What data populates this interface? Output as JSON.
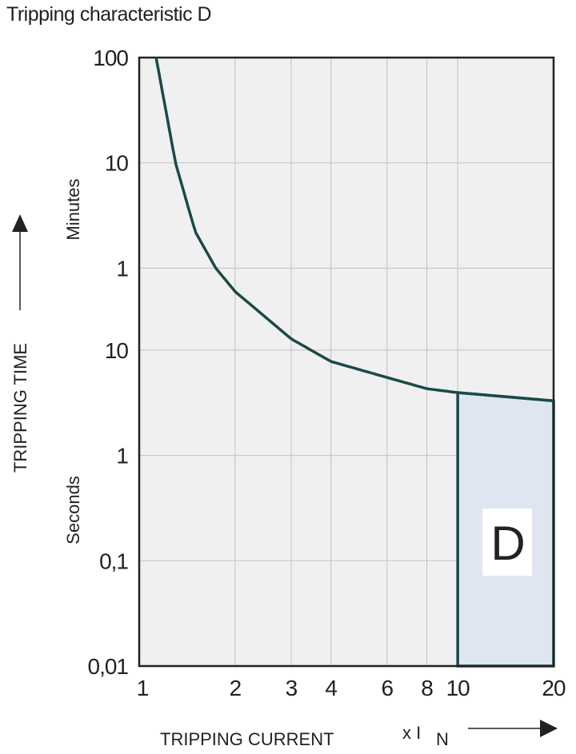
{
  "chart_data": {
    "type": "line",
    "title": "Tripping characteristic D",
    "xlabel": "TRIPPING CURRENT",
    "xunit": "x I",
    "xunit_sub": "N",
    "ylabel": "TRIPPING TIME",
    "x_scale": "log",
    "y_scale": "log",
    "xlim": [
      1,
      20
    ],
    "ylim_seconds": [
      0.01,
      6000
    ],
    "grid": true,
    "x_ticks": [
      {
        "value": 1,
        "label": "1"
      },
      {
        "value": 2,
        "label": "2"
      },
      {
        "value": 3,
        "label": "3"
      },
      {
        "value": 4,
        "label": "4"
      },
      {
        "value": 6,
        "label": "6"
      },
      {
        "value": 8,
        "label": "8"
      },
      {
        "value": 10,
        "label": "10"
      },
      {
        "value": 20,
        "label": "20"
      }
    ],
    "y_ticks": [
      {
        "seconds": 6000,
        "label": "100",
        "unit": "min"
      },
      {
        "seconds": 600,
        "label": "10",
        "unit": "min"
      },
      {
        "seconds": 60,
        "label": "1",
        "unit": "min"
      },
      {
        "seconds": 10,
        "label": "10",
        "unit": "s"
      },
      {
        "seconds": 1,
        "label": "1",
        "unit": "s"
      },
      {
        "seconds": 0.1,
        "label": "0,1",
        "unit": "s"
      },
      {
        "seconds": 0.01,
        "label": "0,01",
        "unit": "s"
      }
    ],
    "y_unit_labels": {
      "minutes": "Minutes",
      "seconds": "Seconds"
    },
    "curve": {
      "x": [
        1.13,
        1.3,
        1.5,
        1.74,
        2,
        3,
        4,
        6,
        8,
        10,
        20
      ],
      "seconds": [
        6000,
        600,
        133,
        60,
        36,
        12.8,
        7.8,
        5.5,
        4.3,
        3.95,
        3.3
      ]
    },
    "region": {
      "label": "D",
      "x_range": [
        10,
        20
      ],
      "fill": "#dfe6f2"
    },
    "colors": {
      "curve": "#1a4a48",
      "plot_bg": "#f0f0f0",
      "grid": "#c8c8c8",
      "axis": "#222222"
    }
  }
}
